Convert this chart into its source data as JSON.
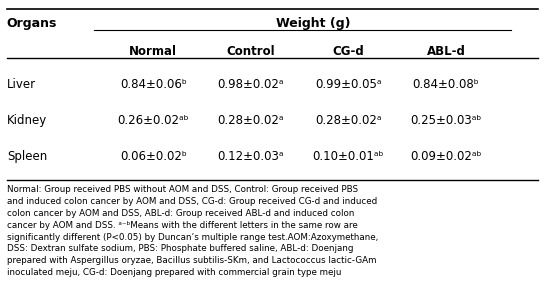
{
  "title_col1": "Organs",
  "title_main": "Weight (g)",
  "subheaders": [
    "Normal",
    "Control",
    "CG-d",
    "ABL-d"
  ],
  "rows": [
    {
      "organ": "Liver",
      "values": [
        "0.84±0.06ᵇ",
        "0.98±0.02ᵃ",
        "0.99±0.05ᵃ",
        "0.84±0.08ᵇ"
      ]
    },
    {
      "organ": "Kidney",
      "values": [
        "0.26±0.02ᵃᵇ",
        "0.28±0.02ᵃ",
        "0.28±0.02ᵃ",
        "0.25±0.03ᵃᵇ"
      ]
    },
    {
      "organ": "Spleen",
      "values": [
        "0.06±0.02ᵇ",
        "0.12±0.03ᵃ",
        "0.10±0.01ᵃᵇ",
        "0.09±0.02ᵃᵇ"
      ]
    }
  ],
  "footnote": "Normal: Group received PBS without AOM and DSS, Control: Group received PBS\nand induced colon cancer by AOM and DSS, CG-d: Group received CG-d and induced\ncolon cancer by AOM and DSS, ABL-d: Group received ABL-d and induced colon\ncancer by AOM and DSS. ᵃ⁻ᵇMeans with the different letters in the same row are\nsignificantly different (P<0.05) by Duncan’s multiple range test.AOM:Azoxymethane,\nDSS: Dextran sulfate sodium, PBS: Phosphate buffered saline, ABL-d: Doenjang\nprepared with Aspergillus oryzae, Bacillus subtilis-SKm, and Lactococcus lactic-GAm\ninoculated meju, CG-d: Doenjang prepared with commercial grain type meju",
  "bg_color": "#ffffff",
  "text_color": "#000000",
  "figwidth": 5.45,
  "figheight": 2.89,
  "dpi": 100
}
